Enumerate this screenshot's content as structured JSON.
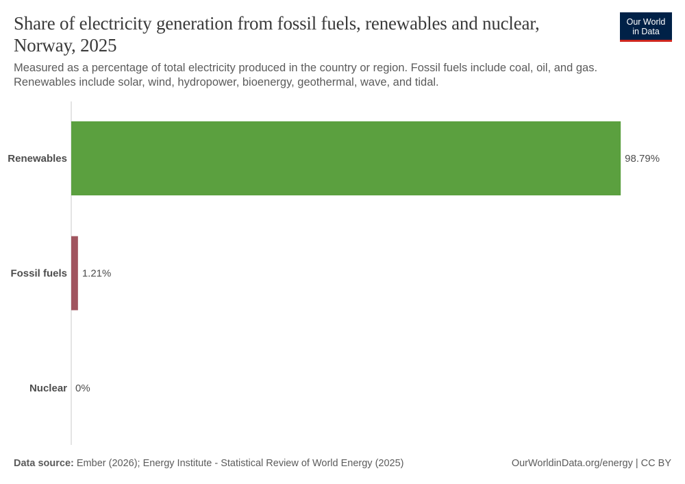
{
  "title": "Share of electricity generation from fossil fuels, renewables and nuclear, Norway, 2025",
  "subtitle_lines": [
    "Measured as a percentage of total electricity produced in the country or region. Fossil fuels include coal, oil, and gas.",
    "Renewables include solar, wind, hydropower, bioenergy, geothermal, wave, and tidal."
  ],
  "logo": {
    "line1": "Our World",
    "line2": "in Data"
  },
  "footer": {
    "source_label": "Data source:",
    "source_text": "Ember (2026); Energy Institute - Statistical Review of World Energy (2025)",
    "site": "OurWorldinData.org/energy",
    "license": "| CC BY"
  },
  "chart_data": {
    "type": "bar",
    "orientation": "horizontal",
    "categories": [
      "Renewables",
      "Fossil fuels",
      "Nuclear"
    ],
    "values": [
      98.79,
      1.21,
      0
    ],
    "value_labels": [
      "98.79%",
      "1.21%",
      "0%"
    ],
    "colors": [
      "#5ba03f",
      "#a0555f",
      "#7a7a7a"
    ],
    "xlim": [
      0,
      100
    ],
    "grid": false
  }
}
